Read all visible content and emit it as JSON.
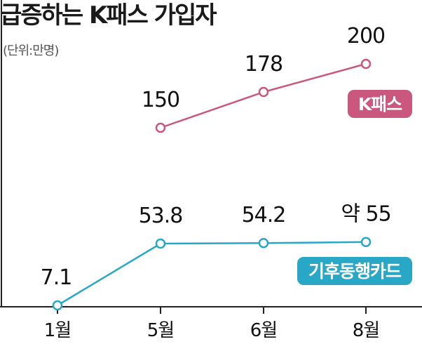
{
  "chart_data": {
    "type": "line",
    "title": "급증하는 K패스 가입자",
    "unit_label": "(단위:만명)",
    "categories": [
      "1월",
      "5월",
      "6월",
      "8월"
    ],
    "series": [
      {
        "name": "K패스",
        "color": "#c9577e",
        "values": [
          null,
          150,
          178,
          200
        ],
        "labels": [
          "",
          "150",
          "178",
          "200"
        ]
      },
      {
        "name": "기후동행카드",
        "color": "#29a7c6",
        "values": [
          7.1,
          53.8,
          54.2,
          55
        ],
        "labels": [
          "7.1",
          "53.8",
          "54.2",
          "약 55"
        ]
      }
    ],
    "grid": false,
    "legend": "inline"
  }
}
